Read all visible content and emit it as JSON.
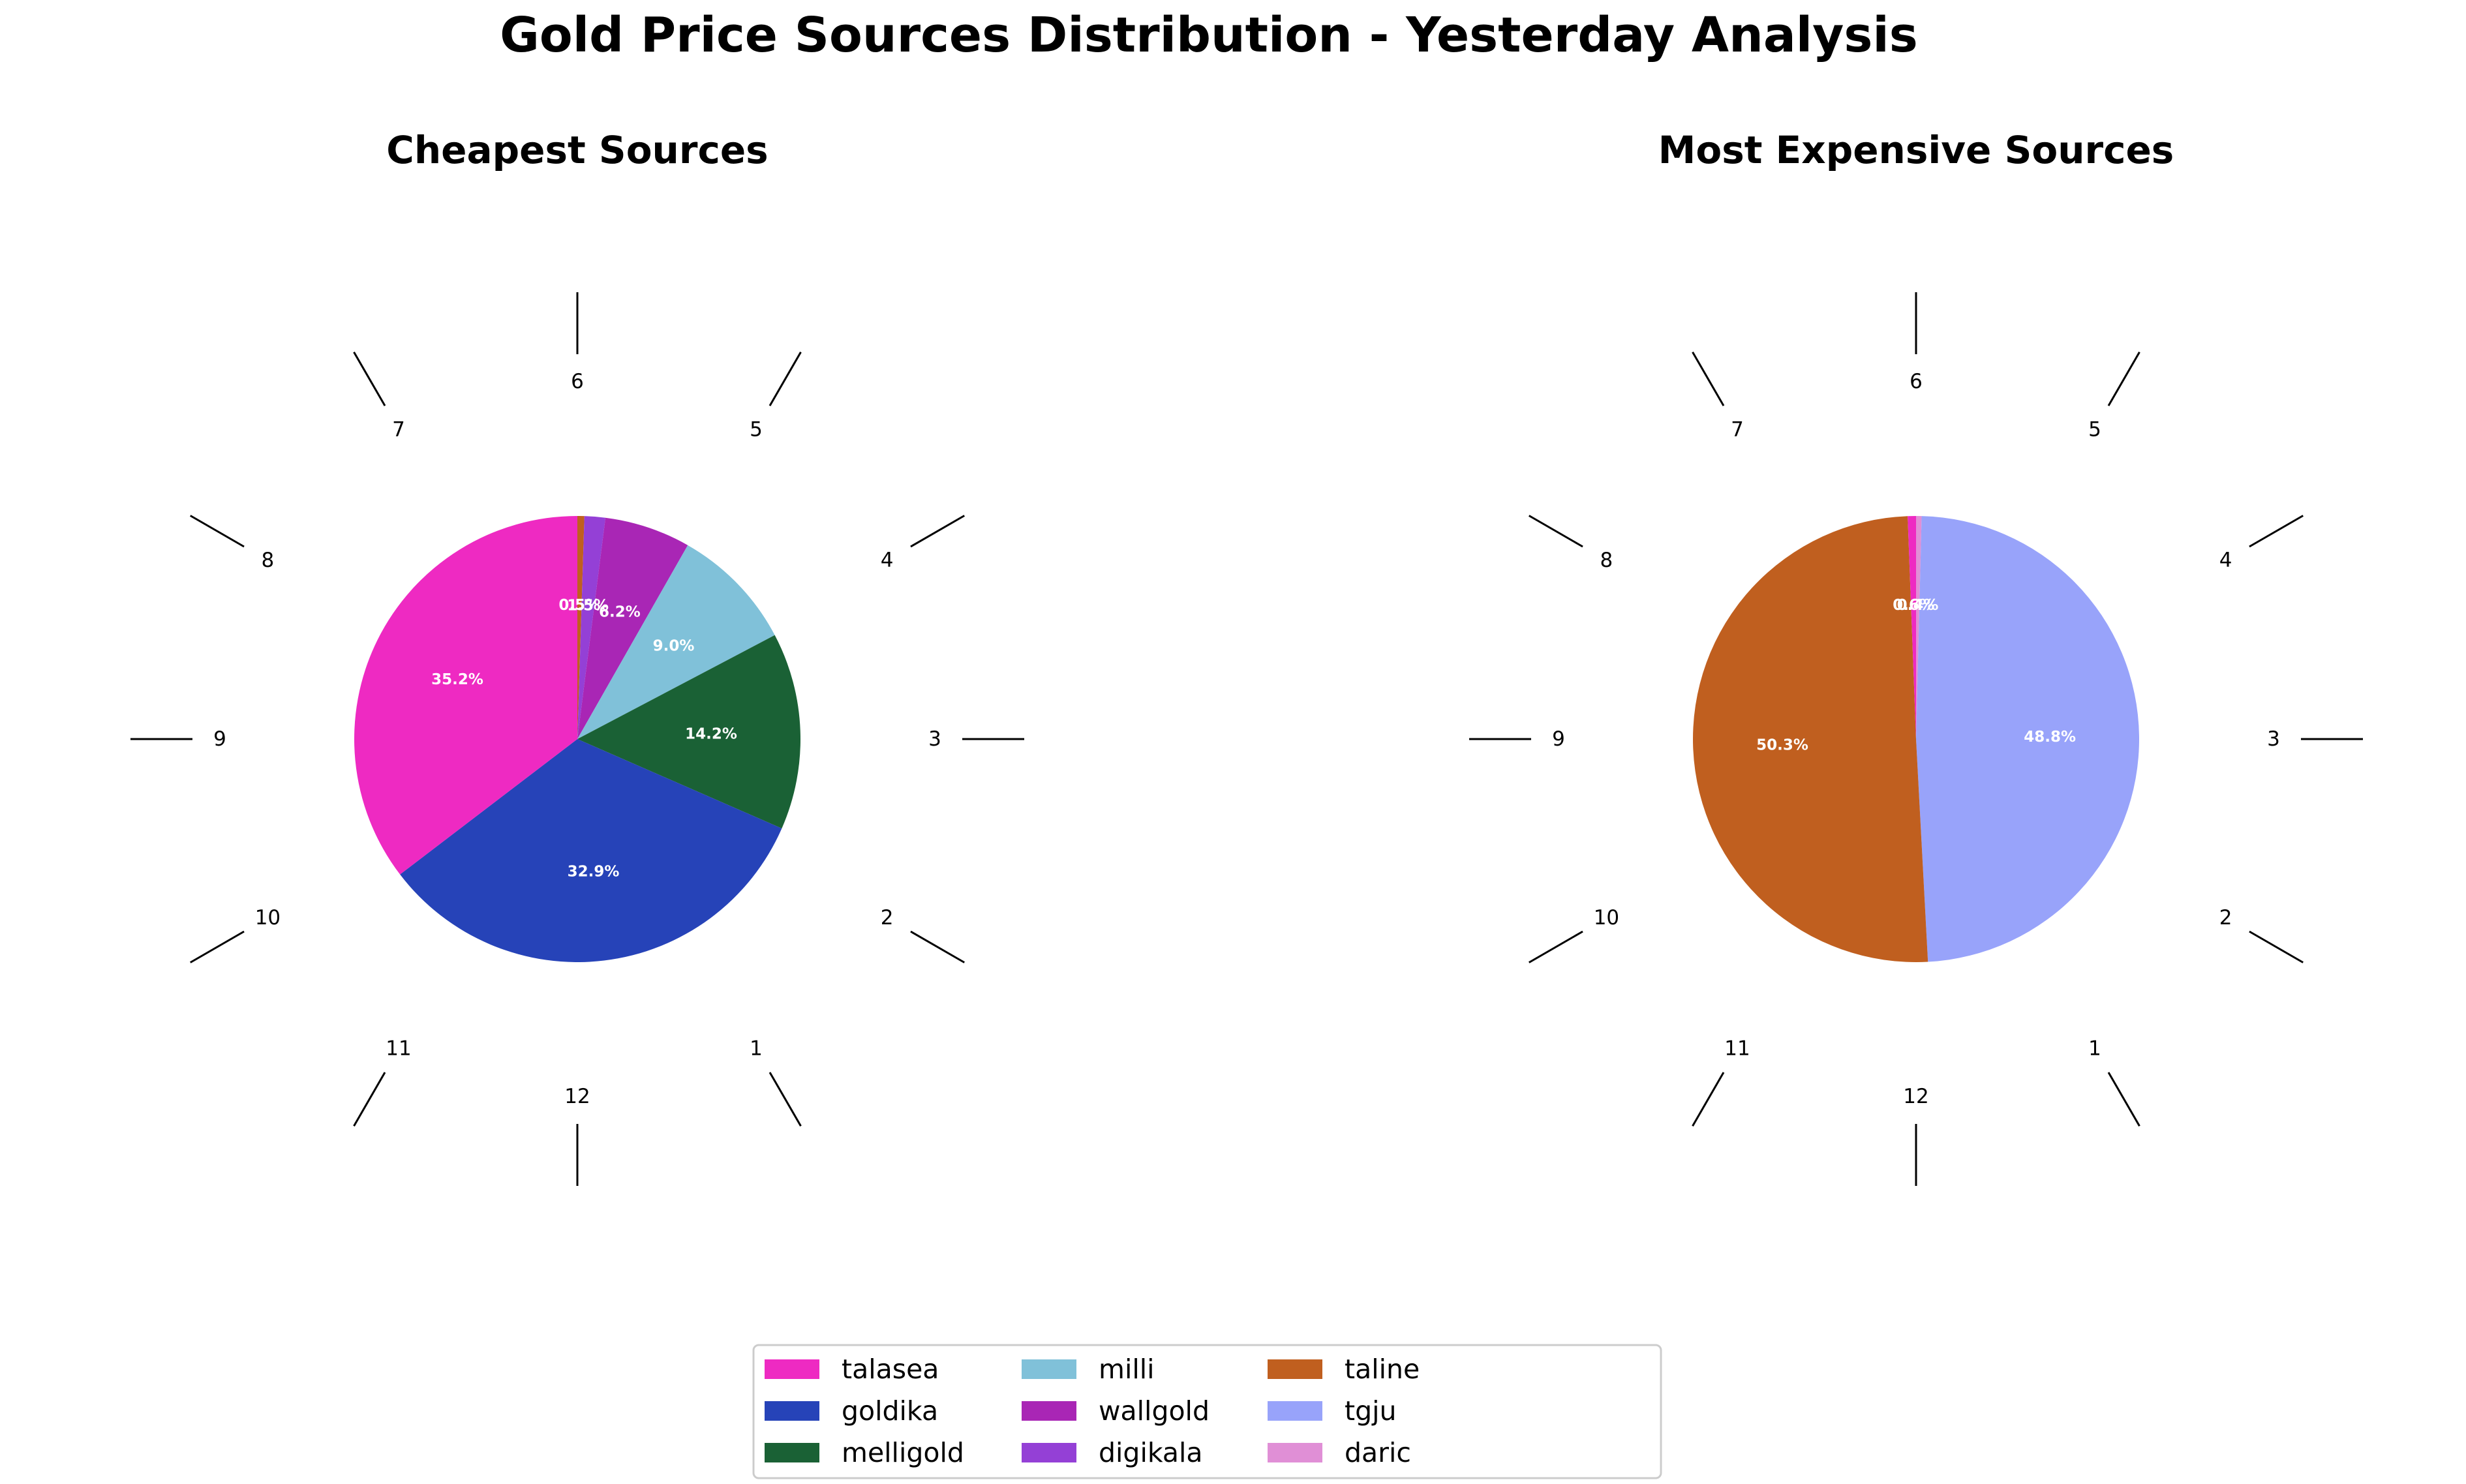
{
  "chart_data": {
    "type": "pie",
    "title": "Gold Price Sources Distribution - Yesterday Analysis",
    "colors": {
      "talasea": "#ee2ac2",
      "goldika": "#2643b8",
      "melligold": "#1a6135",
      "milli": "#80c1d9",
      "wallgold": "#a926b5",
      "digikala": "#9440d6",
      "taline": "#c05f1f",
      "tgju": "#98a3fa",
      "daric": "#e08fd6"
    },
    "legend": {
      "position": "bottom-center",
      "entries": [
        "talasea",
        "goldika",
        "melligold",
        "milli",
        "wallgold",
        "digikala",
        "taline",
        "tgju",
        "daric"
      ]
    },
    "clock_labels": [
      "6",
      "5",
      "4",
      "3",
      "2",
      "1",
      "12",
      "11",
      "10",
      "9",
      "8",
      "7"
    ],
    "charts": [
      {
        "title": "Cheapest Sources",
        "start_angle": 90,
        "direction": "clockwise",
        "slices": [
          {
            "label": "taline",
            "value": 0.5,
            "display": "0.5%"
          },
          {
            "label": "digikala",
            "value": 1.5,
            "display": "1.5%"
          },
          {
            "label": "wallgold",
            "value": 6.2,
            "display": "6.2%"
          },
          {
            "label": "milli",
            "value": 9.0,
            "display": "9.0%"
          },
          {
            "label": "melligold",
            "value": 14.2,
            "display": "14.2%"
          },
          {
            "label": "goldika",
            "value": 32.9,
            "display": "32.9%"
          },
          {
            "label": "talasea",
            "value": 35.2,
            "display": "35.2%"
          }
        ]
      },
      {
        "title": "Most Expensive Sources",
        "start_angle": 90,
        "direction": "clockwise",
        "slices": [
          {
            "label": "daric",
            "value": 0.4,
            "display": "0.4%"
          },
          {
            "label": "tgju",
            "value": 48.8,
            "display": "48.8%"
          },
          {
            "label": "taline",
            "value": 50.3,
            "display": "50.3%"
          },
          {
            "label": "talasea",
            "value": 0.6,
            "display": "0.6%"
          }
        ]
      }
    ]
  }
}
